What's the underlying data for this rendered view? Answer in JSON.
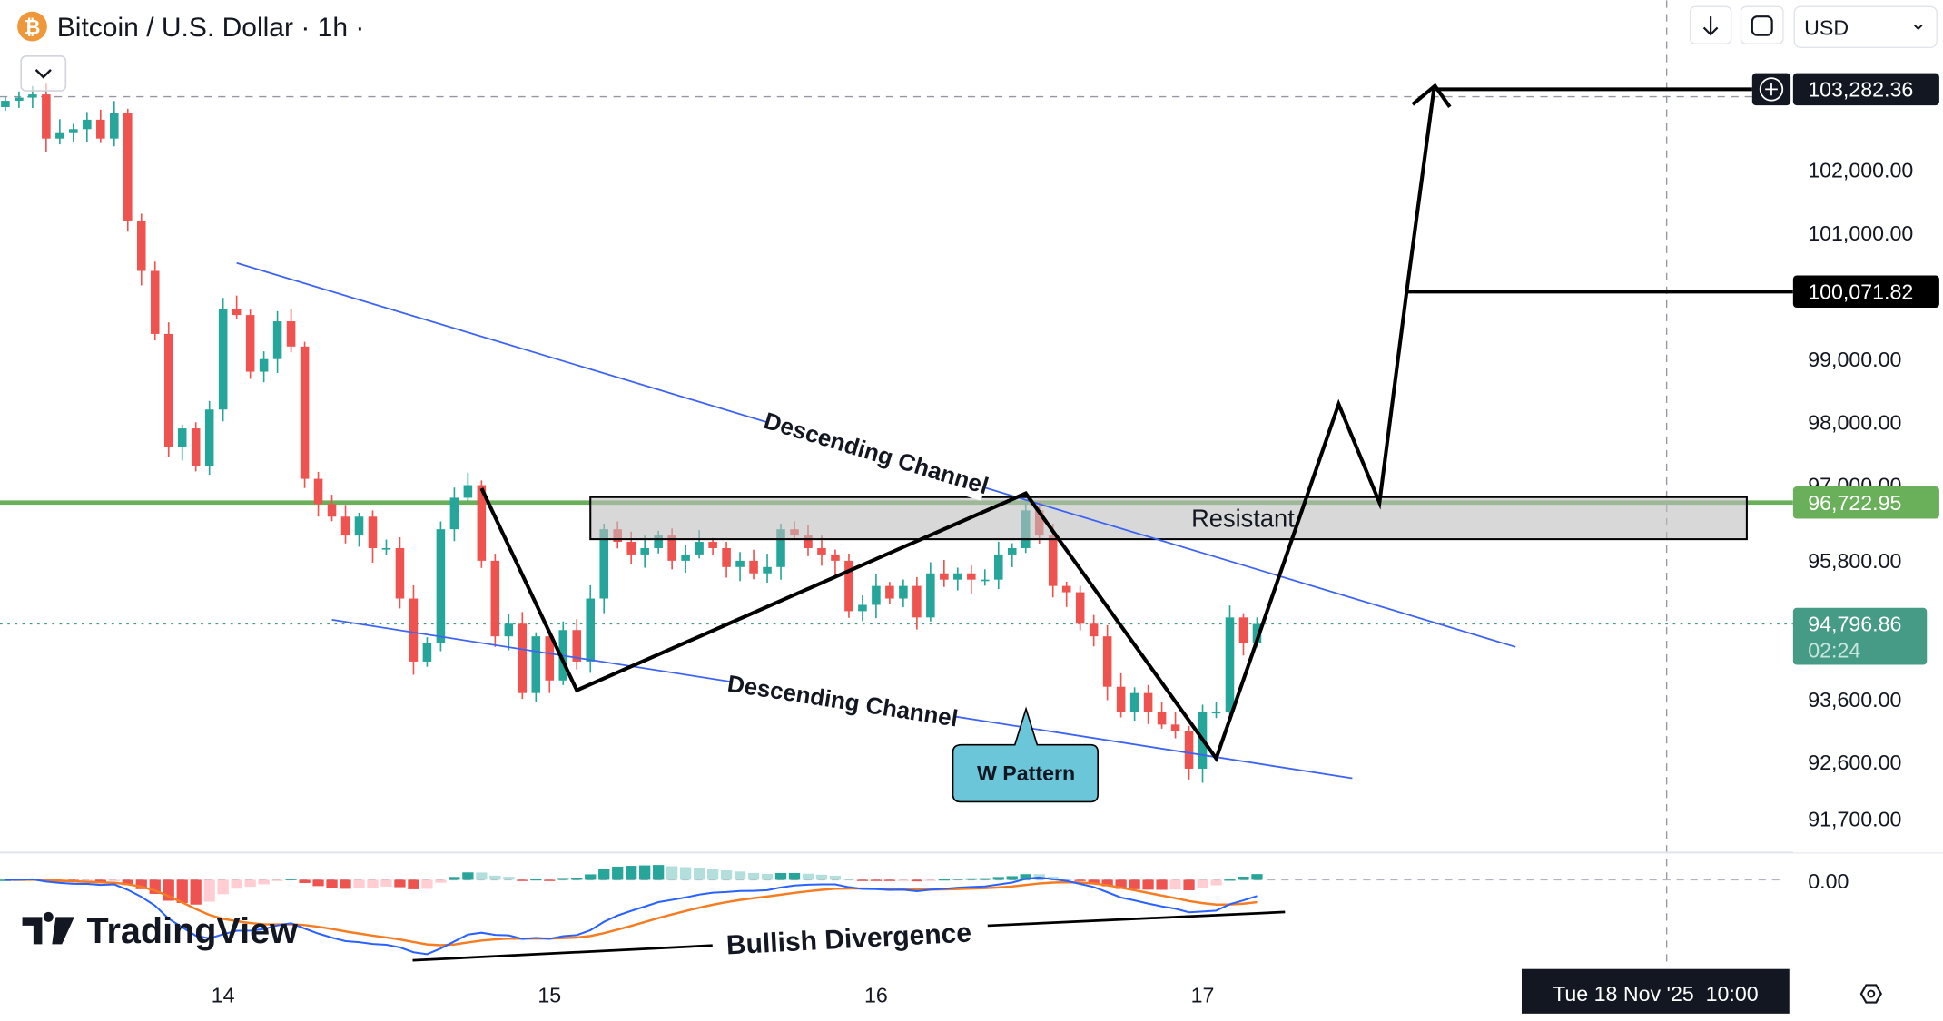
{
  "header": {
    "title": "Bitcoin / U.S. Dollar · 1h ·",
    "symbol_icon": "bitcoin-icon",
    "collapse_icon": "chevron-down-icon"
  },
  "toolbar": {
    "scroll_icon": "arrow-down-icon",
    "fullscreen_icon": "fullscreen-icon",
    "currency": "USD",
    "settings_icon": "gear-icon"
  },
  "watermark": "TradingView",
  "colors": {
    "up": "#26a69a",
    "down": "#ef5350",
    "channel": "#3d63f5",
    "resistance_line": "#6aaf5a",
    "current_price": "#459b85",
    "macd": "#2962ff",
    "signal": "#f57c20",
    "callout": "#6ac6d8"
  },
  "chart_data": {
    "type": "candlestick",
    "interval": "1h",
    "start": "2025-11-13 08:00",
    "closes": [
      103100,
      103150,
      103200,
      102500,
      102600,
      102650,
      102800,
      102500,
      102900,
      101200,
      100400,
      99400,
      97600,
      97900,
      97300,
      98200,
      99800,
      99700,
      98800,
      99000,
      99600,
      99200,
      97100,
      96700,
      96500,
      96200,
      96500,
      96000,
      96000,
      95200,
      94200,
      94500,
      96300,
      96800,
      97000,
      95800,
      94600,
      94800,
      93700,
      94600,
      93900,
      94700,
      94200,
      95200,
      96300,
      96100,
      95900,
      96000,
      96200,
      95800,
      95900,
      96100,
      96000,
      95700,
      95800,
      95600,
      95700,
      96300,
      96200,
      96000,
      95900,
      95800,
      95000,
      95100,
      95400,
      95200,
      95400,
      94900,
      95600,
      95500,
      95600,
      95500,
      95500,
      95900,
      96000,
      96600,
      96200,
      95400,
      95300,
      94800,
      94600,
      93800,
      93400,
      93700,
      93400,
      93200,
      93100,
      92500,
      93400,
      93400,
      94900,
      94500,
      94796.86
    ],
    "first_open": 103000,
    "y_ticks": [
      "102,000.00",
      "101,000.00",
      "99,000.00",
      "98,000.00",
      "97,000.00",
      "95,800.00",
      "93,600.00",
      "92,600.00",
      "91,700.00"
    ],
    "x_ticks": [
      {
        "label": "14",
        "time": "2025-11-14 00:00"
      },
      {
        "label": "15",
        "time": "2025-11-15 00:00"
      },
      {
        "label": "16",
        "time": "2025-11-16 00:00"
      },
      {
        "label": "17",
        "time": "2025-11-17 00:00"
      }
    ],
    "macd_zero_label": "0.00",
    "current_price": {
      "value": 94796.86,
      "label": "94,796.86",
      "countdown": "02:24"
    },
    "price_labels": [
      {
        "label": "103,282.36",
        "value": 103282.36
      },
      {
        "label": "100,071.82",
        "value": 100071.82
      },
      {
        "label": "96,722.95",
        "value": 96722.95
      }
    ],
    "crosshair": {
      "time": "2025-11-18 10:00",
      "label": "Tue 18 Nov '25  10:00",
      "price": 103282.36
    }
  },
  "drawings": {
    "upper_channel": {
      "label": "Descending Channel",
      "points": [
        [
          "2025-11-14 01:00",
          100526
        ],
        [
          "2025-11-17 23:00",
          94432
        ]
      ]
    },
    "lower_channel": {
      "label": "Descending Channel",
      "points": [
        [
          "2025-11-14 08:00",
          94864
        ],
        [
          "2025-11-17 11:00",
          92348
        ]
      ]
    },
    "w_path": [
      [
        "2025-11-14 19:00",
        96950
      ],
      [
        "2025-11-15 02:00",
        93744
      ],
      [
        "2025-11-16 11:00",
        96870
      ],
      [
        "2025-11-17 01:00",
        92662
      ],
      [
        "2025-11-17 10:00",
        98285
      ],
      [
        "2025-11-17 13:00",
        96723
      ],
      [
        "2025-11-17 15:00",
        100071.82
      ],
      [
        "2025-11-17 17:00",
        103282.36
      ]
    ],
    "resistance": {
      "label": "Resistant",
      "start": "2025-11-15 03:00",
      "end": "2025-11-18 16:00",
      "top": 96810,
      "bottom": 96142
    },
    "w_pattern_callout": "W Pattern",
    "bullish_divergence": "Bullish Divergence"
  }
}
